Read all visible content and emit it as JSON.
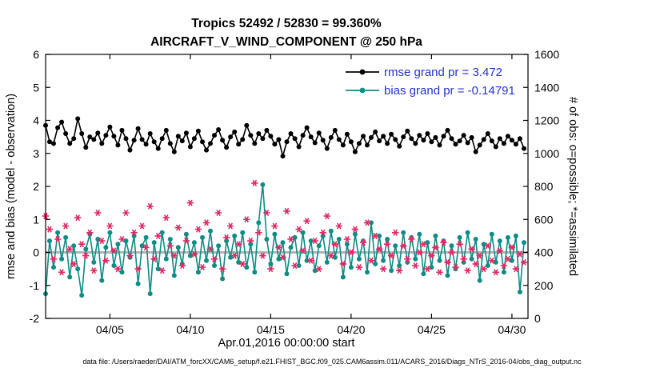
{
  "header": {
    "title_line1": "Tropics 52492 / 52830 = 99.360%",
    "title_line2": "AIRCRAFT_V_WIND_COMPONENT @ 250 hPa"
  },
  "footer": {
    "data_file": "data file: /Users/raeder/DAI/ATM_forcXX/CAM6_setup/f.e21.FHIST_BGC.f09_025.CAM6assim.011/ACARS_2016/Diags_NTrS_2016-04/obs_diag_output.nc"
  },
  "chart_data": {
    "type": "line",
    "title": "Tropics 52492 / 52830 = 99.360% — AIRCRAFT_V_WIND_COMPONENT @ 250 hPa",
    "xlabel": "Apr.01,2016 00:00:00 start",
    "ylabel_left": "rmse and bias (model - observation)",
    "ylabel_right": "# of obs: o=possible; *=assimilated",
    "x_range_days": [
      0,
      30
    ],
    "x_step_days": 0.25,
    "ylim_left": [
      -2,
      6
    ],
    "ylim_right": [
      0,
      1600
    ],
    "grid": false,
    "zero_line": 0,
    "zero_line_color": "#b3b3b3",
    "legend_text_color": "#2433cc",
    "x_ticks": {
      "positions": [
        4,
        9,
        14,
        19,
        24,
        29
      ],
      "labels": [
        "04/05",
        "04/10",
        "04/15",
        "04/20",
        "04/25",
        "04/30"
      ]
    },
    "y_ticks_left": [
      -2,
      -1,
      0,
      1,
      2,
      3,
      4,
      5,
      6
    ],
    "y_ticks_right": [
      0,
      200,
      400,
      600,
      800,
      1000,
      1200,
      1400,
      1600
    ],
    "legend": [
      {
        "label": "rmse grand pr = 3.472",
        "series": "rmse"
      },
      {
        "label": "bias grand pr = -0.14791",
        "series": "bias"
      }
    ],
    "series": [
      {
        "name": "rmse",
        "axis": "left",
        "color": "#000000",
        "marker": "circle",
        "values": [
          3.85,
          3.35,
          3.3,
          3.78,
          3.95,
          3.6,
          3.3,
          3.45,
          4.05,
          3.6,
          3.18,
          3.5,
          3.42,
          3.62,
          3.3,
          3.55,
          3.8,
          3.52,
          3.25,
          3.7,
          3.45,
          3.1,
          3.4,
          3.75,
          3.42,
          3.28,
          3.6,
          3.35,
          3.15,
          3.45,
          3.7,
          3.3,
          3.05,
          3.52,
          3.38,
          3.62,
          3.2,
          3.45,
          3.68,
          3.35,
          3.1,
          3.3,
          3.55,
          3.72,
          3.4,
          3.18,
          3.5,
          3.65,
          3.28,
          3.42,
          3.85,
          3.55,
          3.3,
          3.6,
          3.45,
          3.7,
          3.52,
          3.28,
          3.42,
          2.92,
          3.35,
          3.6,
          3.45,
          3.2,
          3.55,
          3.78,
          3.5,
          3.32,
          3.62,
          3.4,
          3.15,
          3.48,
          3.7,
          3.42,
          3.25,
          3.58,
          3.35,
          3.05,
          3.3,
          3.52,
          3.25,
          3.48,
          3.65,
          3.38,
          3.52,
          3.3,
          3.58,
          3.42,
          3.22,
          3.5,
          3.68,
          3.45,
          3.3,
          3.55,
          3.4,
          3.6,
          3.35,
          3.48,
          3.25,
          3.52,
          3.7,
          3.45,
          3.28,
          3.38,
          3.55,
          3.32,
          3.48,
          3.05,
          3.25,
          3.42,
          3.6,
          3.38,
          3.2,
          3.45,
          3.3,
          3.52,
          3.4,
          3.28,
          3.45,
          3.15
        ]
      },
      {
        "name": "bias",
        "axis": "left",
        "color": "#0e8c85",
        "marker": "circle",
        "values": [
          -1.25,
          0.35,
          -0.45,
          0.6,
          -0.2,
          0.45,
          -0.75,
          0.2,
          -0.5,
          -1.3,
          0.1,
          0.55,
          -0.3,
          0.4,
          -0.85,
          0.15,
          0.6,
          -0.4,
          0.25,
          -0.6,
          0.35,
          -0.15,
          0.5,
          -0.95,
          0.2,
          0.45,
          -1.25,
          0.3,
          -0.5,
          0.6,
          -0.2,
          0.4,
          -0.7,
          0.15,
          -0.35,
          0.55,
          -0.1,
          0.3,
          -0.6,
          0.45,
          -0.25,
          0.65,
          -0.4,
          0.2,
          -0.8,
          0.35,
          -0.15,
          0.5,
          -0.3,
          0.6,
          -0.45,
          0.25,
          -0.6,
          0.9,
          2.05,
          0.4,
          -0.35,
          0.55,
          -0.2,
          0.3,
          -0.65,
          0.15,
          0.45,
          -0.4,
          0.6,
          -0.25,
          0.35,
          -0.55,
          0.2,
          0.5,
          -0.3,
          0.65,
          -0.15,
          0.4,
          -0.75,
          0.25,
          -0.45,
          0.55,
          -0.2,
          0.35,
          -0.6,
          0.9,
          -0.35,
          0.5,
          -0.25,
          0.4,
          -0.55,
          0.2,
          -0.4,
          0.6,
          -0.3,
          0.45,
          -0.2,
          0.55,
          -0.65,
          0.3,
          -0.45,
          0.5,
          -0.25,
          0.35,
          -0.7,
          0.2,
          -0.5,
          0.45,
          -0.3,
          0.6,
          -0.2,
          0.4,
          -0.85,
          0.25,
          -0.4,
          0.55,
          -0.3,
          0.35,
          -0.6,
          0.45,
          -0.25,
          0.5,
          -1.2,
          0.3
        ]
      },
      {
        "name": "obs_assimilated",
        "axis": "right",
        "color": "#e22864",
        "marker": "asterisk",
        "values": [
          620,
          540,
          360,
          480,
          280,
          560,
          420,
          330,
          610,
          450,
          380,
          520,
          290,
          640,
          470,
          350,
          560,
          410,
          300,
          480,
          640,
          380,
          520,
          300,
          560,
          430,
          680,
          360,
          500,
          290,
          610,
          440,
          380,
          550,
          320,
          470,
          700,
          390,
          540,
          310,
          580,
          420,
          360,
          640,
          300,
          490,
          560,
          380,
          450,
          330,
          600,
          470,
          820,
          520,
          380,
          640,
          300,
          560,
          430,
          370,
          650,
          480,
          320,
          540,
          410,
          590,
          350,
          470,
          300,
          520,
          620,
          380,
          450,
          560,
          330,
          480,
          400,
          540,
          310,
          460,
          580,
          350,
          500,
          420,
          300,
          450,
          380,
          520,
          290,
          440,
          360,
          480,
          320,
          400,
          450,
          300,
          380,
          430,
          280,
          460,
          340,
          400,
          310,
          450,
          360,
          290,
          420,
          330,
          380,
          300,
          440,
          350,
          280,
          410,
          320,
          360,
          430,
          300,
          390,
          340
        ]
      }
    ]
  }
}
